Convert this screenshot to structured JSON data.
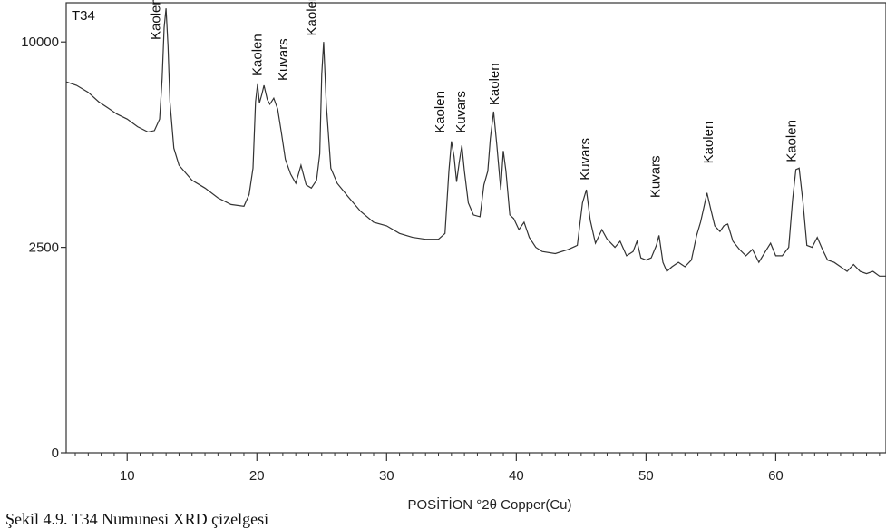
{
  "chart_data": {
    "type": "line",
    "panel_label": "T34",
    "xlabel": "POSİTİON °2θ Copper(Cu)",
    "xlim": [
      5.3,
      68.5
    ],
    "ylim": [
      0,
      12000
    ],
    "yticks": [
      0,
      2500,
      10000
    ],
    "ytick_labels": [
      "0",
      "2500",
      "10000"
    ],
    "xticks": [
      10,
      20,
      30,
      40,
      50,
      60
    ],
    "xtick_labels": [
      "10",
      "20",
      "30",
      "40",
      "50",
      "60"
    ],
    "grid": false,
    "series": [
      {
        "x": [
          5.3,
          6.1,
          7.0,
          7.8,
          8.5,
          9.2,
          10.0,
          10.8,
          11.6,
          12.1,
          12.5,
          12.7,
          12.85,
          13.0,
          13.15,
          13.3,
          13.6,
          14.0,
          15.0,
          16.0,
          17.0,
          18.0,
          19.0,
          19.4,
          19.7,
          19.9,
          20.05,
          20.2,
          20.4,
          20.55,
          20.8,
          21.0,
          21.3,
          21.6,
          21.9,
          22.2,
          22.6,
          23.0,
          23.4,
          23.8,
          24.2,
          24.6,
          24.85,
          25.0,
          25.15,
          25.35,
          25.7,
          26.2,
          27.0,
          28.0,
          29.0,
          30.0,
          31.0,
          32.0,
          33.0,
          34.0,
          34.5,
          34.8,
          35.0,
          35.2,
          35.4,
          35.6,
          35.8,
          36.0,
          36.3,
          36.7,
          37.2,
          37.5,
          37.8,
          38.0,
          38.25,
          38.5,
          38.8,
          39.0,
          39.2,
          39.5,
          39.8,
          40.2,
          40.6,
          41.0,
          41.5,
          42.0,
          43.0,
          44.0,
          44.7,
          45.1,
          45.4,
          45.7,
          46.1,
          46.6,
          47.0,
          47.6,
          48.0,
          48.5,
          49.0,
          49.3,
          49.6,
          50.0,
          50.4,
          50.8,
          51.0,
          51.3,
          51.6,
          52.0,
          52.5,
          53.0,
          53.5,
          53.9,
          54.2,
          54.45,
          54.7,
          55.0,
          55.3,
          55.7,
          56.0,
          56.3,
          56.7,
          57.2,
          57.7,
          58.2,
          58.7,
          59.2,
          59.6,
          60.0,
          60.5,
          61.0,
          61.3,
          61.55,
          61.8,
          62.1,
          62.4,
          62.8,
          63.2,
          63.6,
          64.0,
          64.5,
          65.0,
          65.5,
          66.0,
          66.5,
          67.0,
          67.5,
          68.0,
          68.5
        ],
        "y": [
          8150,
          8000,
          7700,
          7300,
          7050,
          6800,
          6600,
          6300,
          6100,
          6150,
          6600,
          8300,
          10700,
          11700,
          9800,
          7300,
          5500,
          4900,
          4400,
          4150,
          3850,
          3650,
          3600,
          3950,
          4800,
          7300,
          8050,
          7250,
          7650,
          8000,
          7400,
          7200,
          7450,
          7000,
          6050,
          5100,
          4600,
          4300,
          4900,
          4250,
          4150,
          4400,
          5300,
          8500,
          10000,
          7200,
          4800,
          4300,
          3900,
          3450,
          3150,
          3050,
          2850,
          2750,
          2700,
          2700,
          2850,
          4700,
          5750,
          5200,
          4350,
          5000,
          5600,
          4700,
          3700,
          3350,
          3300,
          4250,
          4700,
          5850,
          6900,
          5600,
          4100,
          5400,
          4700,
          3350,
          3250,
          2950,
          3150,
          2750,
          2500,
          2400,
          2350,
          2450,
          2550,
          3700,
          4100,
          3200,
          2600,
          2950,
          2700,
          2500,
          2650,
          2300,
          2400,
          2650,
          2250,
          2200,
          2250,
          2550,
          2800,
          2150,
          1950,
          2050,
          2150,
          2050,
          2200,
          2800,
          3150,
          3550,
          4000,
          3500,
          3050,
          2900,
          3050,
          3100,
          2650,
          2450,
          2300,
          2450,
          2150,
          2400,
          2600,
          2300,
          2300,
          2500,
          3800,
          4750,
          4800,
          3700,
          2550,
          2500,
          2750,
          2450,
          2200,
          2150,
          2050,
          1950,
          2100,
          1950,
          1900,
          1950,
          1850,
          1850
        ]
      }
    ],
    "annotations": [
      {
        "text": "Kaolen",
        "x": 12.2,
        "y": 10100
      },
      {
        "text": "Kaolen",
        "x": 20.0,
        "y": 8400
      },
      {
        "text": "Kuvars",
        "x": 22.0,
        "y": 8200
      },
      {
        "text": "Kaolen",
        "x": 24.2,
        "y": 10300
      },
      {
        "text": "Kaolen",
        "x": 34.1,
        "y": 6050
      },
      {
        "text": "Kuvars",
        "x": 35.7,
        "y": 6050
      },
      {
        "text": "Kaolen",
        "x": 38.3,
        "y": 7150
      },
      {
        "text": "Kuvars",
        "x": 45.3,
        "y": 4400
      },
      {
        "text": "Kuvars",
        "x": 50.7,
        "y": 3850
      },
      {
        "text": "Kaolen",
        "x": 54.8,
        "y": 4950
      },
      {
        "text": "Kaolen",
        "x": 61.2,
        "y": 5000
      }
    ]
  },
  "caption": "Şekil 4.9. T34 Numunesi XRD çizelgesi"
}
